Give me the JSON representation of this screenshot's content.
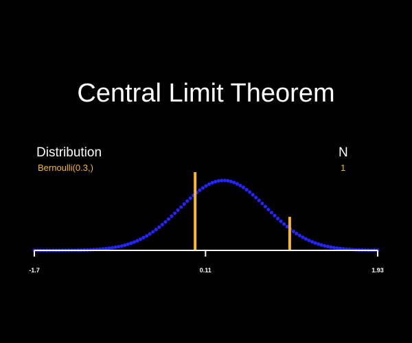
{
  "title": "Central Limit Theorem",
  "distribution": {
    "label": "Distribution",
    "value": "Bernoulli(0.3,)"
  },
  "n": {
    "label": "N",
    "value": "1"
  },
  "colors": {
    "background": "#000000",
    "text": "#ffffff",
    "accent": "#f6b731",
    "curve": "#2424ff",
    "axis": "#ffffff"
  },
  "chart_data": {
    "type": "bar",
    "xlim": [
      -1.7,
      1.93
    ],
    "tick_labels": [
      "-1.7",
      "0.11",
      "1.93"
    ],
    "tick_values": [
      -1.7,
      0.11,
      1.93
    ],
    "bars": {
      "x": [
        0,
        1
      ],
      "values": [
        0.7,
        0.3
      ]
    },
    "normal_curve": {
      "mean": 0.3,
      "sd": 0.458,
      "points": 111
    }
  }
}
